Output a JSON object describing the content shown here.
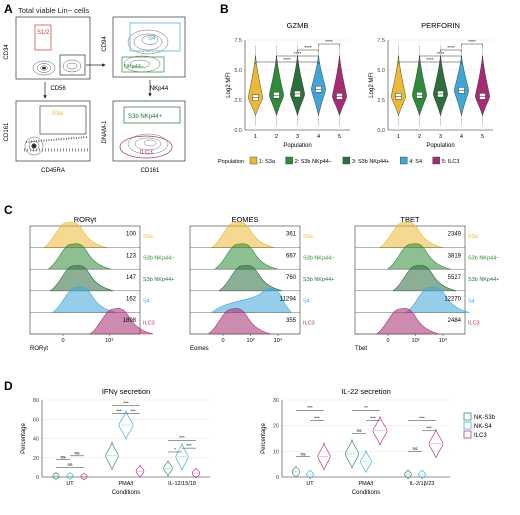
{
  "panels": {
    "A": {
      "letter": "A",
      "title": "Total viable Lin− cells",
      "gates": {
        "s12": "S1/2",
        "s3": "S3",
        "s3a": "S3a",
        "nkp44neg": "NKp44−",
        "s3b_nkp44pos": "S3b NKp44+",
        "ilc3": "ILC3"
      },
      "axes": {
        "p1x": "CD56",
        "p1y": "CD34",
        "p2y": "CD94",
        "p3x": "NKp44",
        "p4x": "CD45RA",
        "p4y": "CD161",
        "p5x": "CD161",
        "p5y": "DNAM-1"
      }
    },
    "B": {
      "letter": "B"
    },
    "C": {
      "letter": "C"
    },
    "D": {
      "letter": "D"
    }
  },
  "colors": {
    "S3a": "#ecb935",
    "S3b_NKp44neg": "#2f8a3a",
    "S3b_NKp44pos": "#2c6e3e",
    "S4": "#3fa6d8",
    "ILC3": "#a62b73",
    "NK_S3b": "#3a8a78",
    "NK_S4": "#43b1d4",
    "ILC3_D": "#b53b86"
  },
  "chart_data": [
    {
      "id": "B-GZMB",
      "type": "violin",
      "title": "GZMB",
      "xlabel": "Population",
      "ylabel": "Log2 MFI",
      "categories": [
        "1",
        "2",
        "3",
        "4",
        "5"
      ],
      "ylim": [
        0,
        7.5
      ],
      "yticks": [
        "0.0",
        "2.5",
        "5.0",
        "7.5"
      ],
      "medians": [
        2.7,
        2.9,
        3.0,
        3.4,
        2.8
      ],
      "significance": [
        "****",
        "****",
        "****",
        "****",
        "****"
      ]
    },
    {
      "id": "B-PERFORIN",
      "type": "violin",
      "title": "PERFORIN",
      "xlabel": "Population",
      "ylabel": "Log2 MFI",
      "categories": [
        "1",
        "2",
        "3",
        "4",
        "5"
      ],
      "ylim": [
        0,
        7.5
      ],
      "yticks": [
        "0.0",
        "2.5",
        "5.0",
        "7.5"
      ],
      "medians": [
        2.8,
        2.9,
        3.0,
        3.3,
        2.8
      ],
      "significance": [
        "****",
        "****",
        "****",
        "****",
        "****"
      ],
      "legend": {
        "title": "Population",
        "items": [
          "1: S3a",
          "2: S3b NKp44−",
          "3: S3b NKp44+",
          "4: S4",
          "5: ILC3"
        ]
      }
    },
    {
      "id": "C-RORgt",
      "type": "histogram",
      "title": "RORγt",
      "xlabel": "RORγt",
      "xticks": [
        "0",
        "10³"
      ],
      "populations": [
        "S3a",
        "S3b NKp44−",
        "S3b NKp44+",
        "S4",
        "ILC3"
      ],
      "mfi": [
        "100",
        "123",
        "147",
        "162",
        "1898"
      ]
    },
    {
      "id": "C-EOMES",
      "type": "histogram",
      "title": "EOMES",
      "xlabel": "Eomes",
      "xticks": [
        "0",
        "10³",
        "10⁴"
      ],
      "populations": [
        "S3a",
        "S3b NKp44−",
        "S3b NKp44+",
        "S4",
        "ILC3"
      ],
      "mfi": [
        "361",
        "667",
        "760",
        "11294",
        "355"
      ]
    },
    {
      "id": "C-TBET",
      "type": "histogram",
      "title": "TBET",
      "xlabel": "Tbet",
      "xticks": [
        "0",
        "10³",
        "10⁴"
      ],
      "populations": [
        "S3a",
        "S3b NKp44−",
        "S3b NKp44+",
        "S4",
        "ILC3"
      ],
      "mfi": [
        "2349",
        "3819",
        "5527",
        "12270",
        "2484"
      ]
    },
    {
      "id": "D-IFNg",
      "type": "violin",
      "title": "IFNγ secretion",
      "xlabel": "Conditions",
      "ylabel": "Percentage",
      "categories": [
        "UT",
        "PMA/I",
        "IL-12/15/18"
      ],
      "ylim": [
        0,
        80
      ],
      "yticks": [
        "0",
        "20",
        "40",
        "60",
        "80"
      ],
      "series": [
        {
          "name": "NK-S3b",
          "medians": [
            1,
            22,
            9
          ]
        },
        {
          "name": "NK-S4",
          "medians": [
            1,
            54,
            21
          ]
        },
        {
          "name": "ILC3",
          "medians": [
            0.5,
            6,
            4
          ]
        }
      ],
      "significance": [
        {
          "category": "UT",
          "labels": [
            "ns",
            "ns",
            "ns"
          ]
        },
        {
          "category": "PMA/I",
          "labels": [
            "***",
            "***",
            "***"
          ]
        },
        {
          "category": "IL-12/15/18",
          "labels": [
            "*",
            "***",
            "***"
          ]
        }
      ]
    },
    {
      "id": "D-IL22",
      "type": "violin",
      "title": "IL-22 secretion",
      "xlabel": "Conditions",
      "ylabel": "Percentage",
      "categories": [
        "UT",
        "PMA/I",
        "IL-2/1β/23"
      ],
      "ylim": [
        0,
        30
      ],
      "yticks": [
        "0",
        "10",
        "20",
        "30"
      ],
      "series": [
        {
          "name": "NK-S3b",
          "medians": [
            2,
            9,
            1
          ]
        },
        {
          "name": "NK-S4",
          "medians": [
            1,
            6,
            1
          ]
        },
        {
          "name": "ILC3",
          "medians": [
            8,
            18,
            13
          ]
        }
      ],
      "significance": [
        {
          "category": "UT",
          "labels": [
            "ns",
            "***",
            "***"
          ]
        },
        {
          "category": "PMA/I",
          "labels": [
            "ns",
            "**",
            "***"
          ]
        },
        {
          "category": "IL-2/1β/23",
          "labels": [
            "ns",
            "***",
            "***"
          ]
        }
      ],
      "legend": {
        "items": [
          "NK-S3b",
          "NK-S4",
          "ILC3"
        ]
      }
    }
  ]
}
